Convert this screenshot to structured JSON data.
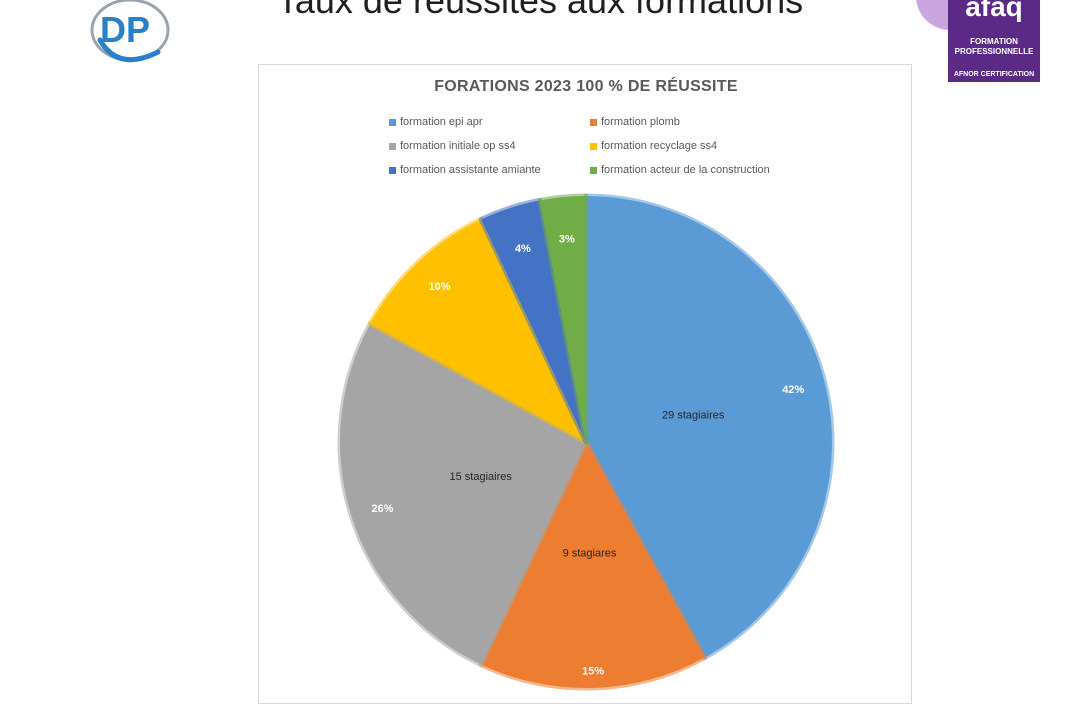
{
  "slide": {
    "title": "Taux de réussites aux formations"
  },
  "logos": {
    "left": {
      "icon": "dp-logo-icon",
      "text": "DP"
    },
    "right": {
      "icon": "qualiopi-afaq-logo-icon",
      "brand": "afaq",
      "line1": "FORMATION",
      "line2": "PROFESSIONNELLE",
      "line3": "AFNOR CERTIFICATION",
      "color": "#5b2a86"
    }
  },
  "chart_data": {
    "type": "pie",
    "title": "FORATIONS 2023 100 % DE RÉUSSITE",
    "legend_position": "top",
    "categories": [
      "formation epi  apr",
      "formation plomb",
      "formation initiale op ss4",
      "formation recyclage ss4",
      "formation assistante amiante",
      "formation acteur de la construction"
    ],
    "values": [
      42,
      15,
      26,
      10,
      4,
      3
    ],
    "percent_labels": [
      "42%",
      "15%",
      "26%",
      "10%",
      "4%",
      "3%"
    ],
    "count_labels": [
      "29 stagiaires",
      "9 stagiares",
      "15 stagiaires",
      "",
      "",
      ""
    ],
    "colors": [
      "#5b9bd5",
      "#ed7d31",
      "#a5a5a5",
      "#ffc000",
      "#4472c4",
      "#70ad47"
    ]
  }
}
